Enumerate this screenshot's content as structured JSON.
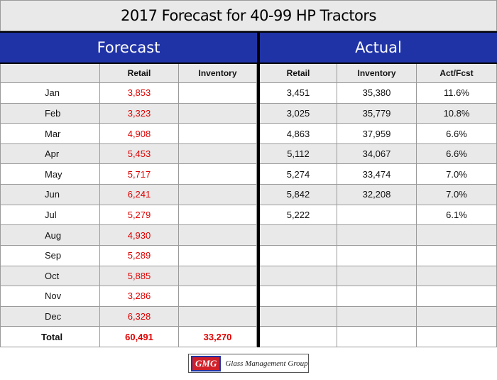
{
  "title": "2017 Forecast for 40-99 HP Tractors",
  "groups": [
    "Forecast",
    "Actual"
  ],
  "columns": [
    "Retail",
    "Inventory",
    "Retail",
    "Inventory",
    "Act/Fcst"
  ],
  "rows": [
    [
      "Jan",
      "3,853",
      null,
      "3,451",
      "35,380",
      "11.6%"
    ],
    [
      "Feb",
      "3,323",
      null,
      "3,025",
      "35,779",
      "10.8%"
    ],
    [
      "Mar",
      "4,908",
      null,
      "4,863",
      "37,959",
      "6.6%"
    ],
    [
      "Apr",
      "5,453",
      null,
      "5,112",
      "34,067",
      "6.6%"
    ],
    [
      "May",
      "5,717",
      null,
      "5,274",
      "33,474",
      "7.0%"
    ],
    [
      "Jun",
      "6,241",
      null,
      "5,842",
      "32,208",
      "7.0%"
    ],
    [
      "Jul",
      "5,279",
      null,
      "5,222",
      null,
      "6.1%"
    ],
    [
      "Aug",
      "4,930",
      null,
      null,
      null,
      null
    ],
    [
      "Sep",
      "5,289",
      null,
      null,
      null,
      null
    ],
    [
      "Oct",
      "5,885",
      null,
      null,
      null,
      null
    ],
    [
      "Nov",
      "3,286",
      null,
      null,
      null,
      null
    ],
    [
      "Dec",
      "6,328",
      null,
      null,
      null,
      null
    ],
    [
      "Total",
      "60,491",
      "33,270",
      null,
      null,
      null
    ]
  ],
  "logo": {
    "mark": "GMG",
    "text": "Glass Management Group"
  }
}
